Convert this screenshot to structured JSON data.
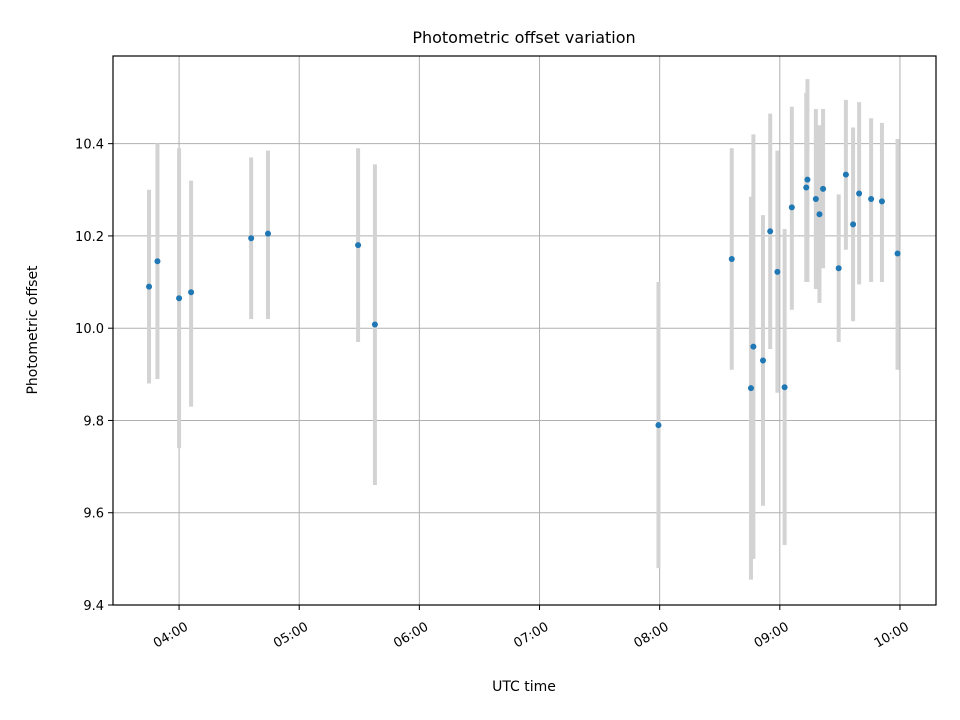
{
  "chart_data": {
    "type": "scatter",
    "title": "Photometric offset variation",
    "xlabel": "UTC time",
    "ylabel": "Photometric offset",
    "xlim_hours": [
      3.45,
      10.3
    ],
    "ylim": [
      9.4,
      10.59
    ],
    "x_ticks_hours": [
      4,
      5,
      6,
      7,
      8,
      9,
      10
    ],
    "x_tick_labels": [
      "04:00",
      "05:00",
      "06:00",
      "07:00",
      "08:00",
      "09:00",
      "10:00"
    ],
    "y_ticks": [
      9.4,
      9.6,
      9.8,
      10.0,
      10.2,
      10.4
    ],
    "y_tick_labels": [
      "9.4",
      "9.6",
      "9.8",
      "10.0",
      "10.2",
      "10.4"
    ],
    "grid": true,
    "marker_color": "#1f77b4",
    "errorbar_color": "#d3d3d3",
    "points": [
      {
        "x": 3.75,
        "y": 10.09,
        "lo": 9.88,
        "hi": 10.3
      },
      {
        "x": 3.82,
        "y": 10.145,
        "lo": 9.89,
        "hi": 10.4
      },
      {
        "x": 4.0,
        "y": 10.065,
        "lo": 9.74,
        "hi": 10.39
      },
      {
        "x": 4.1,
        "y": 10.078,
        "lo": 9.83,
        "hi": 10.32
      },
      {
        "x": 4.6,
        "y": 10.195,
        "lo": 10.02,
        "hi": 10.37
      },
      {
        "x": 4.74,
        "y": 10.205,
        "lo": 10.02,
        "hi": 10.385
      },
      {
        "x": 5.49,
        "y": 10.18,
        "lo": 9.97,
        "hi": 10.39
      },
      {
        "x": 5.63,
        "y": 10.008,
        "lo": 9.66,
        "hi": 10.355
      },
      {
        "x": 7.99,
        "y": 9.79,
        "lo": 9.48,
        "hi": 10.1
      },
      {
        "x": 8.6,
        "y": 10.15,
        "lo": 9.91,
        "hi": 10.39
      },
      {
        "x": 8.76,
        "y": 9.87,
        "lo": 9.455,
        "hi": 10.285
      },
      {
        "x": 8.78,
        "y": 9.96,
        "lo": 9.5,
        "hi": 10.42
      },
      {
        "x": 8.86,
        "y": 9.93,
        "lo": 9.615,
        "hi": 10.245
      },
      {
        "x": 8.92,
        "y": 10.21,
        "lo": 9.955,
        "hi": 10.465
      },
      {
        "x": 8.98,
        "y": 10.122,
        "lo": 9.86,
        "hi": 10.385
      },
      {
        "x": 9.04,
        "y": 9.872,
        "lo": 9.53,
        "hi": 10.215
      },
      {
        "x": 9.1,
        "y": 10.262,
        "lo": 10.04,
        "hi": 10.48
      },
      {
        "x": 9.22,
        "y": 10.305,
        "lo": 10.1,
        "hi": 10.51
      },
      {
        "x": 9.23,
        "y": 10.322,
        "lo": 10.1,
        "hi": 10.54
      },
      {
        "x": 9.3,
        "y": 10.28,
        "lo": 10.085,
        "hi": 10.475
      },
      {
        "x": 9.33,
        "y": 10.247,
        "lo": 10.055,
        "hi": 10.44
      },
      {
        "x": 9.36,
        "y": 10.302,
        "lo": 10.13,
        "hi": 10.475
      },
      {
        "x": 9.49,
        "y": 10.13,
        "lo": 9.97,
        "hi": 10.29
      },
      {
        "x": 9.55,
        "y": 10.333,
        "lo": 10.17,
        "hi": 10.495
      },
      {
        "x": 9.61,
        "y": 10.225,
        "lo": 10.015,
        "hi": 10.435
      },
      {
        "x": 9.66,
        "y": 10.292,
        "lo": 10.095,
        "hi": 10.49
      },
      {
        "x": 9.76,
        "y": 10.28,
        "lo": 10.1,
        "hi": 10.455
      },
      {
        "x": 9.85,
        "y": 10.275,
        "lo": 10.1,
        "hi": 10.445
      },
      {
        "x": 9.98,
        "y": 10.162,
        "lo": 9.91,
        "hi": 10.41
      }
    ]
  }
}
